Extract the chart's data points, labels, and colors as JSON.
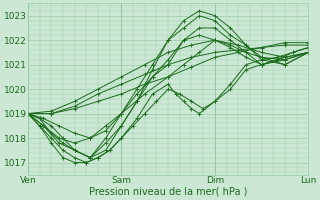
{
  "xlabel": "Pression niveau de la mer( hPa )",
  "bg_color": "#cce8d4",
  "grid_color": "#99ccaa",
  "line_color": "#1a6b1a",
  "ylim": [
    1016.5,
    1023.5
  ],
  "xlim": [
    0,
    72
  ],
  "yticks": [
    1017,
    1018,
    1019,
    1020,
    1021,
    1022,
    1023
  ],
  "xtick_positions": [
    0,
    24,
    48,
    72
  ],
  "xtick_labels": [
    "Ven",
    "Sam",
    "Dim",
    "Lun"
  ],
  "series": [
    [
      0,
      1019.0,
      6,
      1019.0,
      12,
      1019.2,
      18,
      1019.5,
      24,
      1019.8,
      30,
      1020.2,
      36,
      1020.5,
      42,
      1020.9,
      48,
      1021.3,
      54,
      1021.5,
      60,
      1021.7,
      66,
      1021.9,
      72,
      1021.9
    ],
    [
      0,
      1019.0,
      6,
      1019.0,
      12,
      1019.3,
      18,
      1019.8,
      24,
      1020.2,
      30,
      1020.6,
      36,
      1021.0,
      42,
      1021.3,
      48,
      1021.5,
      54,
      1021.6,
      60,
      1021.7,
      66,
      1021.8,
      72,
      1021.8
    ],
    [
      0,
      1019.0,
      6,
      1019.1,
      12,
      1019.5,
      18,
      1020.0,
      24,
      1020.5,
      30,
      1021.0,
      36,
      1021.5,
      42,
      1021.8,
      48,
      1022.0,
      54,
      1021.8,
      60,
      1021.5,
      66,
      1021.3,
      72,
      1021.5
    ],
    [
      0,
      1019.0,
      4,
      1018.8,
      8,
      1018.5,
      12,
      1018.2,
      16,
      1018.0,
      20,
      1018.3,
      24,
      1019.0,
      30,
      1019.8,
      36,
      1020.5,
      40,
      1021.0,
      44,
      1021.5,
      48,
      1022.0,
      52,
      1021.8,
      56,
      1021.5,
      60,
      1021.3,
      66,
      1021.2,
      72,
      1021.5
    ],
    [
      0,
      1019.0,
      4,
      1018.5,
      8,
      1018.0,
      12,
      1017.8,
      16,
      1018.0,
      20,
      1018.5,
      24,
      1019.0,
      28,
      1019.8,
      32,
      1020.5,
      36,
      1021.0,
      40,
      1022.0,
      44,
      1022.2,
      48,
      1022.0,
      52,
      1021.7,
      56,
      1021.3,
      60,
      1021.0,
      66,
      1021.2,
      72,
      1021.5
    ],
    [
      0,
      1019.0,
      3,
      1018.8,
      6,
      1018.5,
      9,
      1018.0,
      12,
      1017.5,
      16,
      1017.2,
      20,
      1017.8,
      24,
      1018.5,
      28,
      1019.5,
      32,
      1020.5,
      36,
      1021.2,
      40,
      1022.0,
      44,
      1022.5,
      48,
      1022.5,
      52,
      1022.0,
      56,
      1021.5,
      60,
      1021.0,
      66,
      1021.3,
      72,
      1021.5
    ],
    [
      0,
      1019.0,
      4,
      1018.5,
      8,
      1017.8,
      12,
      1017.5,
      16,
      1017.2,
      20,
      1018.0,
      24,
      1019.0,
      28,
      1020.0,
      32,
      1021.0,
      36,
      1022.0,
      40,
      1022.5,
      44,
      1023.0,
      48,
      1022.8,
      52,
      1022.2,
      56,
      1021.8,
      60,
      1021.3,
      66,
      1021.0,
      72,
      1021.5
    ],
    [
      0,
      1019.0,
      3,
      1018.8,
      6,
      1018.2,
      9,
      1017.8,
      12,
      1017.5,
      16,
      1017.2,
      20,
      1017.5,
      24,
      1018.5,
      28,
      1019.5,
      32,
      1020.8,
      36,
      1022.0,
      40,
      1022.8,
      44,
      1023.2,
      48,
      1023.0,
      52,
      1022.5,
      56,
      1021.8,
      60,
      1021.2,
      66,
      1021.0,
      72,
      1021.5
    ],
    [
      0,
      1019.0,
      3,
      1018.5,
      6,
      1017.8,
      9,
      1017.2,
      12,
      1017.0,
      15,
      1017.0,
      18,
      1017.2,
      21,
      1017.5,
      24,
      1018.0,
      27,
      1018.5,
      30,
      1019.0,
      33,
      1019.5,
      36,
      1020.0,
      39,
      1019.8,
      42,
      1019.5,
      45,
      1019.2,
      48,
      1019.5,
      52,
      1020.0,
      56,
      1020.8,
      60,
      1021.0,
      64,
      1021.2,
      68,
      1021.5,
      72,
      1021.7
    ],
    [
      0,
      1019.0,
      3,
      1018.5,
      6,
      1018.0,
      9,
      1017.5,
      12,
      1017.2,
      15,
      1017.0,
      18,
      1017.2,
      21,
      1017.5,
      24,
      1018.0,
      28,
      1018.8,
      32,
      1019.8,
      36,
      1020.2,
      38,
      1019.8,
      40,
      1019.5,
      42,
      1019.2,
      44,
      1019.0,
      48,
      1019.5,
      52,
      1020.2,
      56,
      1021.0,
      60,
      1021.2,
      64,
      1021.3,
      68,
      1021.5,
      72,
      1021.7
    ]
  ]
}
